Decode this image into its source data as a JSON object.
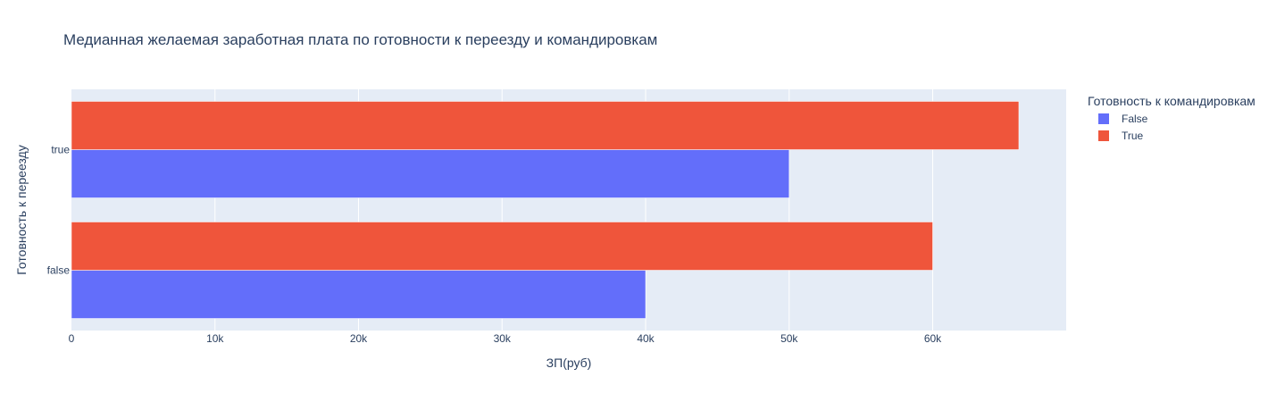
{
  "chart_data": {
    "type": "bar",
    "orientation": "horizontal",
    "barmode": "group",
    "title": "Медианная желаемая заработная плата по готовности к переезду и командировкам",
    "xlabel": "ЗП(руб)",
    "ylabel": "Готовность к переезду",
    "categories": [
      "false",
      "true"
    ],
    "xlim": [
      0,
      69300
    ],
    "xticks": [
      0,
      10000,
      20000,
      30000,
      40000,
      50000,
      60000
    ],
    "xtick_labels": [
      "0",
      "10k",
      "20k",
      "30k",
      "40k",
      "50k",
      "60k"
    ],
    "grid": true,
    "legend": {
      "title": "Готовность к командировкам",
      "placement": "right"
    },
    "series": [
      {
        "name": "False",
        "color": "#636efa",
        "values": [
          40000,
          50000
        ]
      },
      {
        "name": "True",
        "color": "#ef553b",
        "values": [
          60000,
          66000
        ]
      }
    ]
  },
  "colors": {
    "plot_bg": "#e5ecf6",
    "grid": "#ffffff",
    "text": "#2a3f5f"
  }
}
